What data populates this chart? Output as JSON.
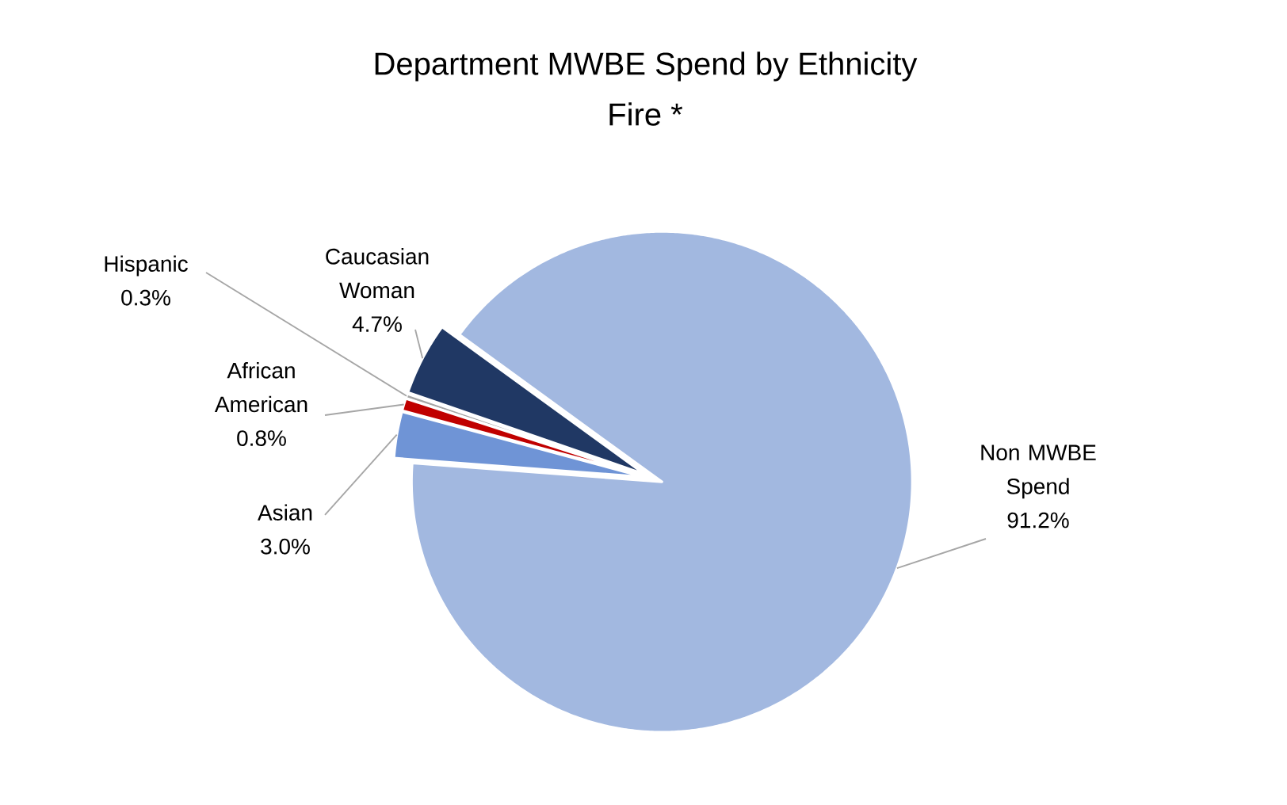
{
  "chart_data": {
    "type": "pie",
    "title": "Department MWBE Spend by Ethnicity",
    "subtitle": "Fire *",
    "categories": [
      "Caucasian Woman",
      "Hispanic",
      "African American",
      "Asian",
      "Non MWBE Spend"
    ],
    "values": [
      4.7,
      0.3,
      0.8,
      3.0,
      91.2
    ],
    "colors": [
      "#203864",
      "#a5a5a5",
      "#c00000",
      "#6f94d6",
      "#a2b8e0"
    ],
    "value_labels": [
      "4.7%",
      "0.3%",
      "0.8%",
      "3.0%",
      "91.2%"
    ]
  }
}
